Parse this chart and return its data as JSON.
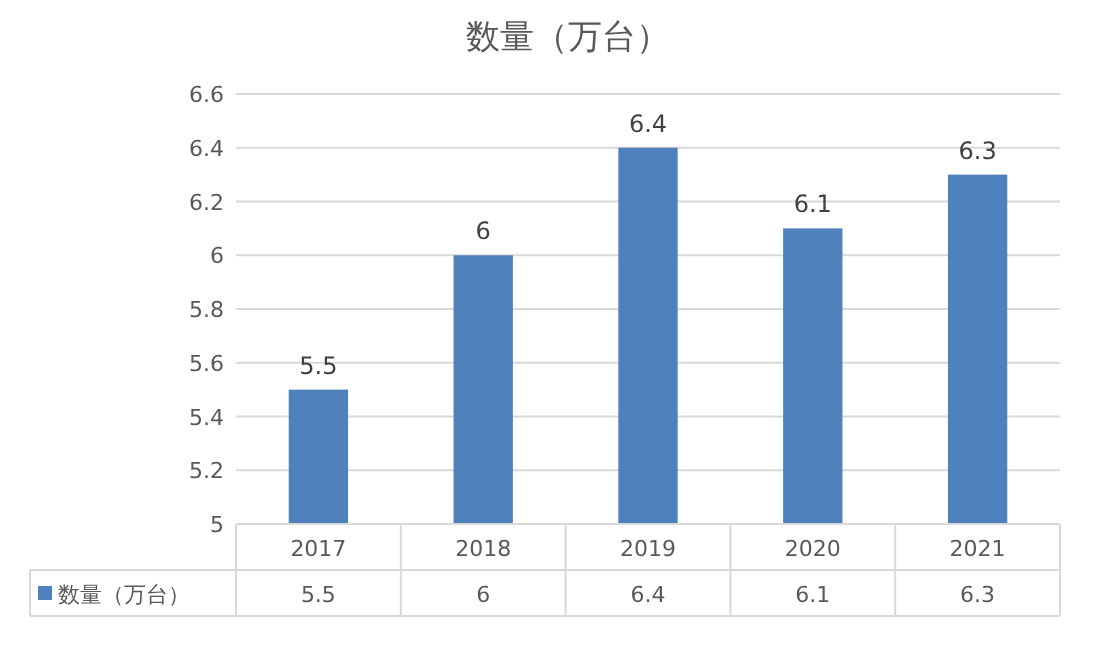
{
  "chart_data": {
    "type": "bar",
    "title": "数量（万台）",
    "categories": [
      "2017",
      "2018",
      "2019",
      "2020",
      "2021"
    ],
    "series": [
      {
        "name": "数量（万台）",
        "color": "#4f81bd",
        "values": [
          5.5,
          6,
          6.4,
          6.1,
          6.3
        ]
      }
    ],
    "ylim": [
      5,
      6.6
    ],
    "yticks": [
      5,
      5.2,
      5.4,
      5.6,
      5.8,
      6,
      6.2,
      6.4,
      6.6
    ],
    "annotations": [
      "5.5",
      "6",
      "6.4",
      "6.1",
      "6.3"
    ],
    "grid": "y",
    "legend": "bottom",
    "data_labels": true
  }
}
